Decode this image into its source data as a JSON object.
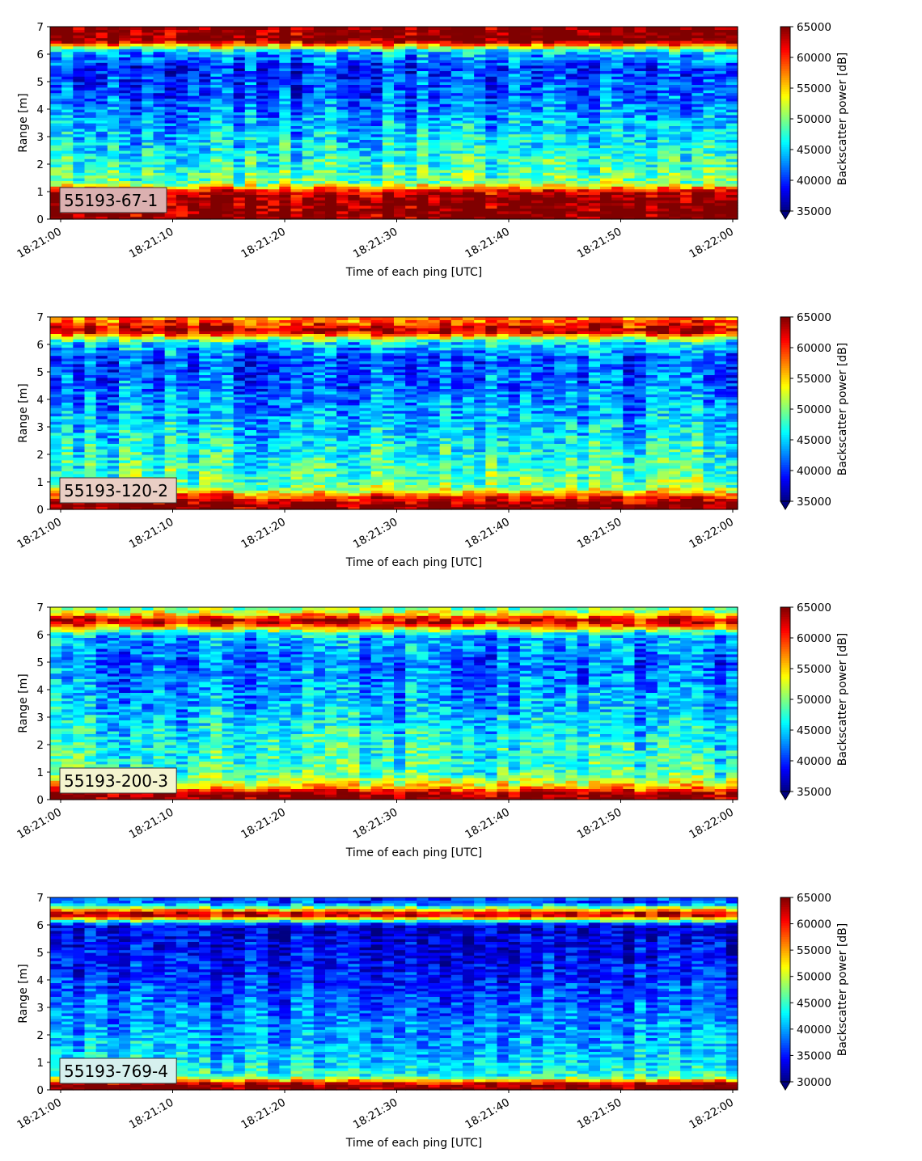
{
  "chart_data": [
    {
      "type": "heatmap",
      "panel_label": "55193-67-1",
      "panel_label_bg": "#dbb0b0",
      "xlabel": "Time of each ping [UTC]",
      "ylabel": "Range [m]",
      "x_tick_labels": [
        "18:21:00",
        "18:21:10",
        "18:21:20",
        "18:21:30",
        "18:21:40",
        "18:21:50",
        "18:22:00"
      ],
      "y_tick_labels": [
        "0",
        "1",
        "2",
        "3",
        "4",
        "5",
        "6",
        "7"
      ],
      "xlim": [
        "18:21:00",
        "18:22:00"
      ],
      "ylim": [
        0,
        7
      ],
      "colormap": "jet",
      "colorbar_label": "Backscatter power [dB]",
      "colorbar_range": [
        35000,
        65000
      ],
      "colorbar_ticks": [
        "35000",
        "40000",
        "45000",
        "50000",
        "55000",
        "60000",
        "65000"
      ],
      "colorbar_extend": "min",
      "range_profile": [
        {
          "range": 0.2,
          "power": 65000
        },
        {
          "range": 0.6,
          "power": 65000
        },
        {
          "range": 1.0,
          "power": 63000
        },
        {
          "range": 1.3,
          "power": 50000
        },
        {
          "range": 1.8,
          "power": 48000
        },
        {
          "range": 2.5,
          "power": 46000
        },
        {
          "range": 3.5,
          "power": 44000
        },
        {
          "range": 4.5,
          "power": 41000
        },
        {
          "range": 5.5,
          "power": 40000
        },
        {
          "range": 6.1,
          "power": 44000
        },
        {
          "range": 6.5,
          "power": 65000
        },
        {
          "range": 6.9,
          "power": 65000
        }
      ]
    },
    {
      "type": "heatmap",
      "panel_label": "55193-120-2",
      "panel_label_bg": "#e9cec4",
      "xlabel": "Time of each ping [UTC]",
      "ylabel": "Range [m]",
      "x_tick_labels": [
        "18:21:00",
        "18:21:10",
        "18:21:20",
        "18:21:30",
        "18:21:40",
        "18:21:50",
        "18:22:00"
      ],
      "y_tick_labels": [
        "0",
        "1",
        "2",
        "3",
        "4",
        "5",
        "6",
        "7"
      ],
      "xlim": [
        "18:21:00",
        "18:22:00"
      ],
      "ylim": [
        0,
        7
      ],
      "colormap": "jet",
      "colorbar_label": "Backscatter power [dB]",
      "colorbar_range": [
        35000,
        65000
      ],
      "colorbar_ticks": [
        "35000",
        "40000",
        "45000",
        "50000",
        "55000",
        "60000",
        "65000"
      ],
      "colorbar_extend": "min",
      "range_profile": [
        {
          "range": 0.2,
          "power": 65000
        },
        {
          "range": 0.5,
          "power": 60000
        },
        {
          "range": 0.8,
          "power": 50000
        },
        {
          "range": 1.5,
          "power": 48000
        },
        {
          "range": 2.5,
          "power": 46000
        },
        {
          "range": 3.5,
          "power": 44000
        },
        {
          "range": 4.5,
          "power": 42000
        },
        {
          "range": 5.5,
          "power": 41000
        },
        {
          "range": 6.1,
          "power": 46000
        },
        {
          "range": 6.5,
          "power": 64000
        },
        {
          "range": 6.9,
          "power": 58000
        }
      ]
    },
    {
      "type": "heatmap",
      "panel_label": "55193-200-3",
      "panel_label_bg": "#f4f4cf",
      "xlabel": "Time of each ping [UTC]",
      "ylabel": "Range [m]",
      "x_tick_labels": [
        "18:21:00",
        "18:21:10",
        "18:21:20",
        "18:21:30",
        "18:21:40",
        "18:21:50",
        "18:22:00"
      ],
      "y_tick_labels": [
        "0",
        "1",
        "2",
        "3",
        "4",
        "5",
        "6",
        "7"
      ],
      "xlim": [
        "18:21:00",
        "18:22:00"
      ],
      "ylim": [
        0,
        7
      ],
      "colormap": "jet",
      "colorbar_label": "Backscatter power [dB]",
      "colorbar_range": [
        35000,
        65000
      ],
      "colorbar_ticks": [
        "35000",
        "40000",
        "45000",
        "50000",
        "55000",
        "60000",
        "65000"
      ],
      "colorbar_extend": "min",
      "range_profile": [
        {
          "range": 0.2,
          "power": 65000
        },
        {
          "range": 0.5,
          "power": 55000
        },
        {
          "range": 1.0,
          "power": 48000
        },
        {
          "range": 2.0,
          "power": 47000
        },
        {
          "range": 3.0,
          "power": 45000
        },
        {
          "range": 4.0,
          "power": 43000
        },
        {
          "range": 5.0,
          "power": 42000
        },
        {
          "range": 6.0,
          "power": 44000
        },
        {
          "range": 6.5,
          "power": 64000
        },
        {
          "range": 6.9,
          "power": 50000
        }
      ]
    },
    {
      "type": "heatmap",
      "panel_label": "55193-769-4",
      "panel_label_bg": "#d6f0ee",
      "xlabel": "Time of each ping [UTC]",
      "ylabel": "Range [m]",
      "x_tick_labels": [
        "18:21:00",
        "18:21:10",
        "18:21:20",
        "18:21:30",
        "18:21:40",
        "18:21:50",
        "18:22:00"
      ],
      "y_tick_labels": [
        "0",
        "1",
        "2",
        "3",
        "4",
        "5",
        "6",
        "7"
      ],
      "xlim": [
        "18:21:00",
        "18:22:00"
      ],
      "ylim": [
        0,
        7
      ],
      "colormap": "jet",
      "colorbar_label": "Backscatter power [dB]",
      "colorbar_range": [
        30000,
        65000
      ],
      "colorbar_ticks": [
        "30000",
        "35000",
        "40000",
        "45000",
        "50000",
        "55000",
        "60000",
        "65000"
      ],
      "colorbar_extend": "min",
      "range_profile": [
        {
          "range": 0.2,
          "power": 65000
        },
        {
          "range": 0.5,
          "power": 45000
        },
        {
          "range": 1.0,
          "power": 42000
        },
        {
          "range": 2.0,
          "power": 40000
        },
        {
          "range": 3.0,
          "power": 38000
        },
        {
          "range": 4.0,
          "power": 36000
        },
        {
          "range": 5.0,
          "power": 34000
        },
        {
          "range": 6.0,
          "power": 33000
        },
        {
          "range": 6.4,
          "power": 65000
        },
        {
          "range": 6.8,
          "power": 37000
        }
      ]
    }
  ]
}
